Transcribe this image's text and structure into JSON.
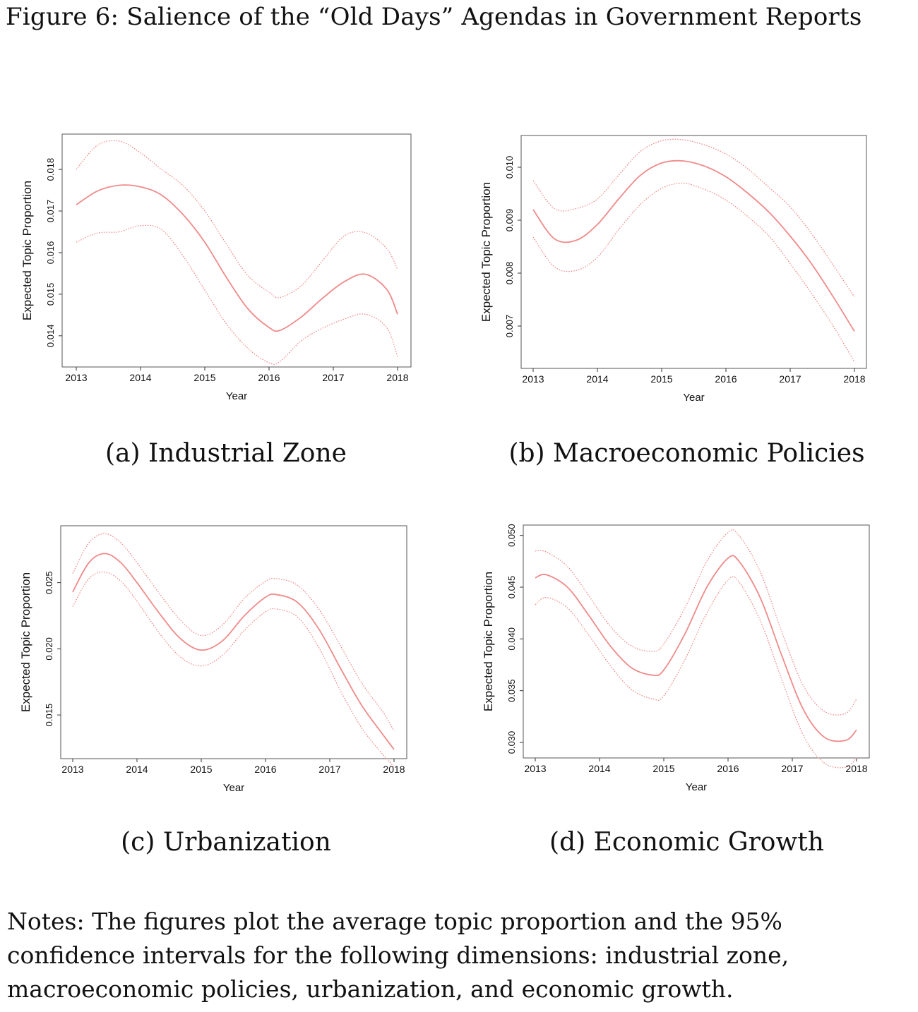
{
  "figure_title": "Figure 6: Salience of the “Old Days” Agendas in Government Reports",
  "notes": "Notes: The figures plot the average topic proportion and the 95% confidence intervals for the following dimensions: industrial zone, macroeconomic policies, urbanization, and economic growth.",
  "line_color": "#f08a8a",
  "chart_data": [
    {
      "type": "line",
      "caption": "(a) Industrial Zone",
      "xlabel": "Year",
      "ylabel": "Expected Topic Proportion",
      "xlim": [
        2013,
        2018
      ],
      "ylim": [
        0.01325,
        0.01885
      ],
      "xticks": [
        2013,
        2014,
        2015,
        2016,
        2017,
        2018
      ],
      "yticks": [
        0.014,
        0.015,
        0.016,
        0.017,
        0.018
      ],
      "ytick_labels": [
        "0.014",
        "0.015",
        "0.016",
        "0.017",
        "0.018"
      ],
      "x": [
        2013.0,
        2013.33,
        2013.67,
        2014.0,
        2014.33,
        2014.67,
        2015.0,
        2015.33,
        2015.67,
        2016.0,
        2016.17,
        2016.5,
        2016.83,
        2017.17,
        2017.5,
        2017.83,
        2018.0
      ],
      "mean": [
        0.01715,
        0.01748,
        0.01762,
        0.01758,
        0.01738,
        0.0169,
        0.01625,
        0.01542,
        0.01465,
        0.0142,
        0.01413,
        0.01445,
        0.0149,
        0.0153,
        0.01548,
        0.01512,
        0.01452
      ],
      "upper": [
        0.018,
        0.01858,
        0.01868,
        0.0184,
        0.018,
        0.0176,
        0.017,
        0.01622,
        0.01545,
        0.01505,
        0.01492,
        0.0152,
        0.0158,
        0.0164,
        0.01648,
        0.0161,
        0.0156
      ],
      "lower": [
        0.01625,
        0.01647,
        0.0165,
        0.01665,
        0.01655,
        0.0159,
        0.0151,
        0.0143,
        0.0137,
        0.01335,
        0.01338,
        0.01388,
        0.01418,
        0.0144,
        0.01452,
        0.0142,
        0.0135
      ]
    },
    {
      "type": "line",
      "caption": "(b) Macroeconomic Policies",
      "xlabel": "Year",
      "ylabel": "Expected Topic Proportion",
      "xlim": [
        2013,
        2018
      ],
      "ylim": [
        0.0062,
        0.0106
      ],
      "xticks": [
        2013,
        2014,
        2015,
        2016,
        2017,
        2018
      ],
      "yticks": [
        0.007,
        0.008,
        0.009,
        0.01
      ],
      "ytick_labels": [
        "0.007",
        "0.008",
        "0.009",
        "0.010"
      ],
      "x": [
        2013.0,
        2013.33,
        2013.67,
        2014.0,
        2014.33,
        2014.67,
        2015.0,
        2015.33,
        2015.67,
        2016.0,
        2016.33,
        2016.67,
        2017.0,
        2017.33,
        2017.67,
        2018.0
      ],
      "mean": [
        0.0092,
        0.00865,
        0.00862,
        0.00892,
        0.0094,
        0.00985,
        0.01008,
        0.01012,
        0.01002,
        0.00982,
        0.00952,
        0.00915,
        0.0087,
        0.00818,
        0.00755,
        0.0069
      ],
      "upper": [
        0.00975,
        0.00922,
        0.00922,
        0.0094,
        0.00985,
        0.0103,
        0.0105,
        0.01052,
        0.01042,
        0.01025,
        0.00998,
        0.00962,
        0.00925,
        0.00875,
        0.00815,
        0.00755
      ],
      "lower": [
        0.00868,
        0.00812,
        0.00805,
        0.0083,
        0.00882,
        0.0093,
        0.0096,
        0.0097,
        0.00958,
        0.00938,
        0.00908,
        0.0087,
        0.00818,
        0.00762,
        0.007,
        0.00632
      ]
    },
    {
      "type": "line",
      "caption": "(c) Urbanization",
      "xlabel": "Year",
      "ylabel": "Expected Topic Proportion",
      "xlim": [
        2013,
        2018
      ],
      "ylim": [
        0.0117,
        0.0293
      ],
      "xticks": [
        2013,
        2014,
        2015,
        2016,
        2017,
        2018
      ],
      "yticks": [
        0.015,
        0.02,
        0.025
      ],
      "ytick_labels": [
        "0.015",
        "0.020",
        "0.025"
      ],
      "x": [
        2013.0,
        2013.25,
        2013.5,
        2013.75,
        2014.0,
        2014.33,
        2014.67,
        2015.0,
        2015.33,
        2015.67,
        2016.0,
        2016.17,
        2016.5,
        2016.83,
        2017.17,
        2017.5,
        2017.83,
        2018.0
      ],
      "mean": [
        0.0243,
        0.0265,
        0.0272,
        0.0265,
        0.025,
        0.0228,
        0.0208,
        0.0199,
        0.0206,
        0.0225,
        0.0239,
        0.0241,
        0.0235,
        0.0215,
        0.0185,
        0.0157,
        0.0135,
        0.0124
      ],
      "upper": [
        0.0257,
        0.028,
        0.0287,
        0.028,
        0.0265,
        0.0243,
        0.0222,
        0.021,
        0.0218,
        0.0238,
        0.0251,
        0.0253,
        0.0248,
        0.023,
        0.0202,
        0.0174,
        0.0152,
        0.0138
      ],
      "lower": [
        0.0232,
        0.0253,
        0.0258,
        0.0251,
        0.0236,
        0.0213,
        0.0194,
        0.0187,
        0.0195,
        0.0214,
        0.0228,
        0.023,
        0.0224,
        0.0201,
        0.0168,
        0.014,
        0.012,
        0.0111
      ]
    },
    {
      "type": "line",
      "caption": "(d) Economic Growth",
      "xlabel": "Year",
      "ylabel": "Expected Topic Proportion",
      "xlim": [
        2013,
        2018
      ],
      "ylim": [
        0.0285,
        0.051
      ],
      "xticks": [
        2013,
        2014,
        2015,
        2016,
        2017,
        2018
      ],
      "yticks": [
        0.03,
        0.035,
        0.04,
        0.045,
        0.05
      ],
      "ytick_labels": [
        "0.030",
        "0.035",
        "0.040",
        "0.045",
        "0.050"
      ],
      "x": [
        2013.0,
        2013.17,
        2013.5,
        2013.83,
        2014.17,
        2014.5,
        2014.83,
        2015.0,
        2015.33,
        2015.67,
        2016.0,
        2016.17,
        2016.5,
        2016.83,
        2017.17,
        2017.5,
        2017.83,
        2018.0
      ],
      "mean": [
        0.0459,
        0.0462,
        0.045,
        0.0423,
        0.0393,
        0.0372,
        0.0365,
        0.037,
        0.0405,
        0.045,
        0.0478,
        0.0475,
        0.044,
        0.0385,
        0.0332,
        0.0305,
        0.0302,
        0.0312
      ],
      "upper": [
        0.0485,
        0.0484,
        0.047,
        0.0442,
        0.0412,
        0.0393,
        0.0388,
        0.0395,
        0.043,
        0.0475,
        0.0503,
        0.05,
        0.0465,
        0.0408,
        0.0355,
        0.033,
        0.0328,
        0.0342
      ],
      "lower": [
        0.0433,
        0.044,
        0.043,
        0.0404,
        0.0374,
        0.0351,
        0.0342,
        0.0345,
        0.038,
        0.0425,
        0.0457,
        0.0455,
        0.0418,
        0.0362,
        0.0307,
        0.028,
        0.0276,
        0.0285
      ]
    }
  ]
}
